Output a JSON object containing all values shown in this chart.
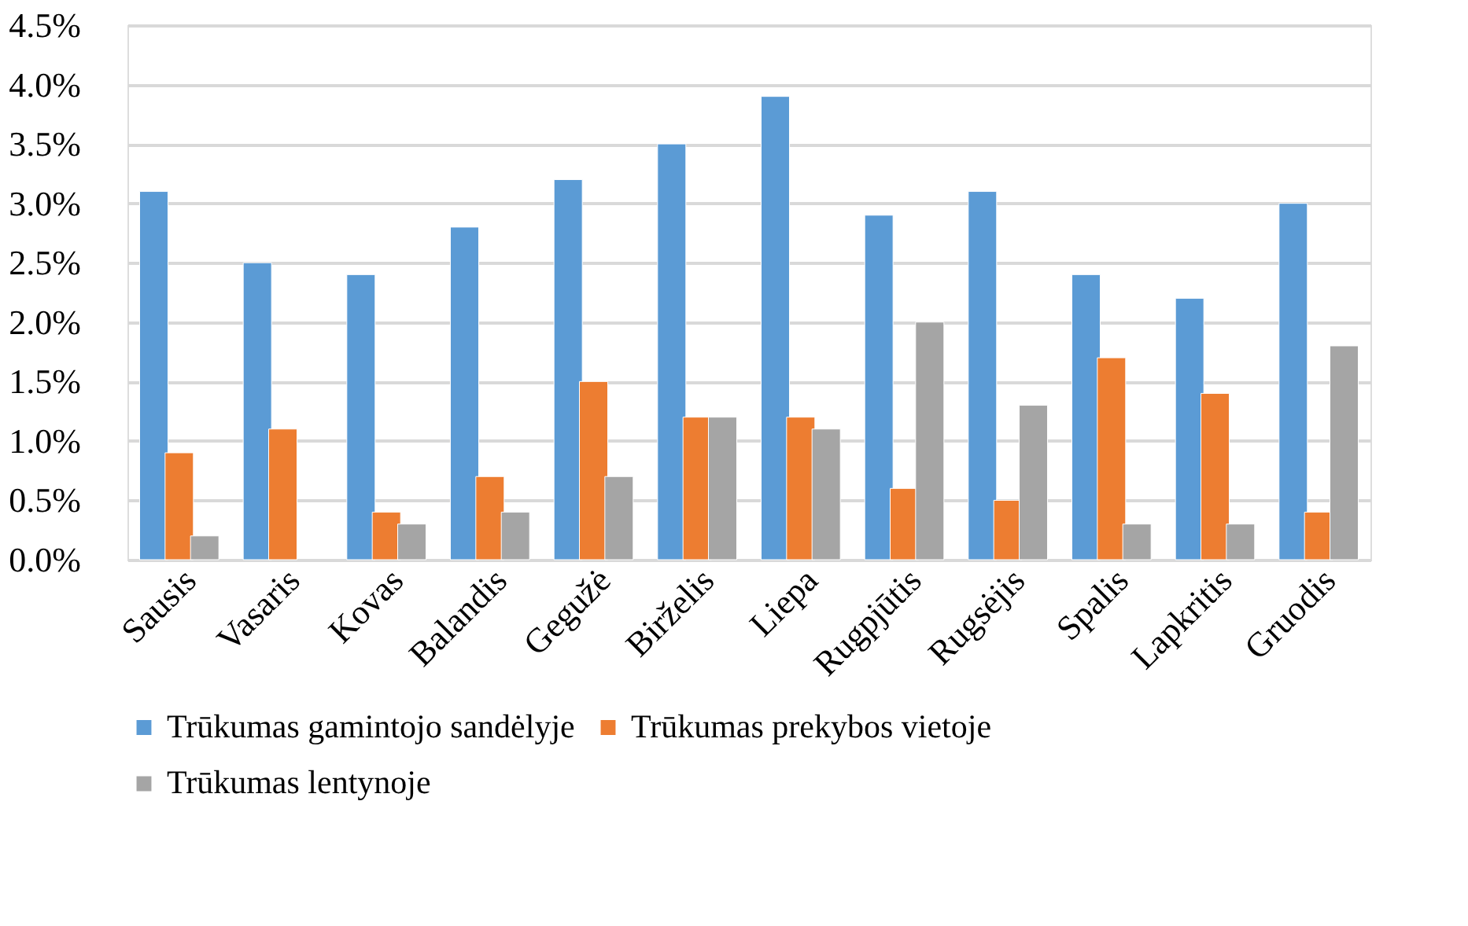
{
  "chart_data": {
    "type": "bar",
    "categories": [
      "Sausis",
      "Vasaris",
      "Kovas",
      "Balandis",
      "Gegužė",
      "Birželis",
      "Liepa",
      "Rugpjūtis",
      "Rugsėjis",
      "Spalis",
      "Lapkritis",
      "Gruodis"
    ],
    "series": [
      {
        "name": "Trūkumas gamintojo sandėlyje",
        "color": "#5b9bd5",
        "values": [
          3.1,
          2.5,
          2.4,
          2.8,
          3.2,
          3.5,
          3.9,
          2.9,
          3.1,
          2.4,
          2.2,
          3.0
        ]
      },
      {
        "name": "Trūkumas prekybos vietoje",
        "color": "#ed7d31",
        "values": [
          0.9,
          1.1,
          0.4,
          0.7,
          1.5,
          1.2,
          1.2,
          0.6,
          0.5,
          1.7,
          1.4,
          0.4
        ]
      },
      {
        "name": "Trūkumas lentynoje",
        "color": "#a5a5a5",
        "values": [
          0.2,
          null,
          0.3,
          0.4,
          0.7,
          1.2,
          1.1,
          2.0,
          1.3,
          0.3,
          0.3,
          1.8
        ]
      }
    ],
    "ylim": [
      0,
      4.5
    ],
    "yticks": [
      {
        "value": 0,
        "label": "0.0%"
      },
      {
        "value": 0.5,
        "label": "0.5%"
      },
      {
        "value": 1,
        "label": "1.0%"
      },
      {
        "value": 1.5,
        "label": "1.5%"
      },
      {
        "value": 2,
        "label": "2.0%"
      },
      {
        "value": 2.5,
        "label": "2.5%"
      },
      {
        "value": 3,
        "label": "3.0%"
      },
      {
        "value": 3.5,
        "label": "3.5%"
      },
      {
        "value": 4,
        "label": "4.0%"
      },
      {
        "value": 4.5,
        "label": "4.5%"
      }
    ],
    "grid": "y",
    "legend": "bottom"
  }
}
